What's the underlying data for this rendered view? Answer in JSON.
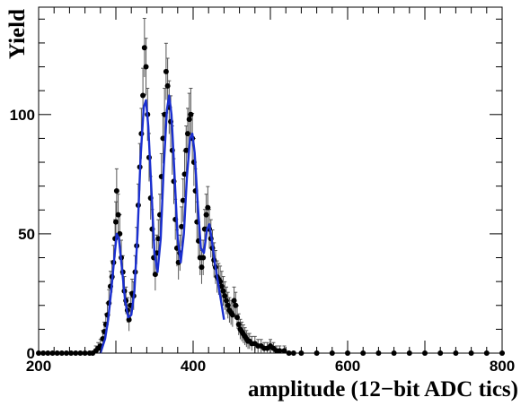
{
  "chart_data": {
    "type": "scatter",
    "title": "",
    "xlabel": "amplitude (12−bit ADC tics)",
    "ylabel": "Yield",
    "xlim": [
      200,
      800
    ],
    "ylim": [
      0,
      145
    ],
    "x_ticks": [
      "200",
      "400",
      "600",
      "800"
    ],
    "y_ticks": [
      "0",
      "50",
      "100"
    ],
    "grid": false,
    "legend": "none",
    "colors": {
      "data": "#000000",
      "fit": "#1a2fd0"
    },
    "series": [
      {
        "kind": "data points with error bars",
        "points": [
          [
            200,
            0
          ],
          [
            206,
            0
          ],
          [
            212,
            0
          ],
          [
            218,
            0
          ],
          [
            224,
            0
          ],
          [
            230,
            0
          ],
          [
            236,
            0
          ],
          [
            242,
            0
          ],
          [
            248,
            0
          ],
          [
            254,
            0
          ],
          [
            260,
            0
          ],
          [
            266,
            0
          ],
          [
            270,
            0
          ],
          [
            274,
            1
          ],
          [
            277,
            2
          ],
          [
            280,
            3
          ],
          [
            283,
            6
          ],
          [
            285,
            9
          ],
          [
            287,
            12
          ],
          [
            289,
            16
          ],
          [
            291,
            21
          ],
          [
            293,
            28
          ],
          [
            295,
            32
          ],
          [
            297,
            38
          ],
          [
            299,
            48
          ],
          [
            300,
            55
          ],
          [
            301,
            68
          ],
          [
            303,
            58
          ],
          [
            305,
            50
          ],
          [
            307,
            40
          ],
          [
            309,
            34
          ],
          [
            311,
            26
          ],
          [
            313,
            22
          ],
          [
            315,
            18
          ],
          [
            317,
            14
          ],
          [
            319,
            20
          ],
          [
            321,
            25
          ],
          [
            323,
            24
          ],
          [
            325,
            34
          ],
          [
            327,
            45
          ],
          [
            329,
            62
          ],
          [
            331,
            78
          ],
          [
            333,
            92
          ],
          [
            335,
            108
          ],
          [
            337,
            128
          ],
          [
            339,
            120
          ],
          [
            341,
            100
          ],
          [
            343,
            82
          ],
          [
            345,
            65
          ],
          [
            347,
            52
          ],
          [
            349,
            40
          ],
          [
            351,
            33
          ],
          [
            353,
            42
          ],
          [
            355,
            48
          ],
          [
            357,
            58
          ],
          [
            359,
            74
          ],
          [
            361,
            90
          ],
          [
            363,
            100
          ],
          [
            365,
            118
          ],
          [
            367,
            112
          ],
          [
            369,
            103
          ],
          [
            371,
            97
          ],
          [
            373,
            85
          ],
          [
            375,
            72
          ],
          [
            377,
            56
          ],
          [
            379,
            44
          ],
          [
            381,
            38
          ],
          [
            383,
            42
          ],
          [
            385,
            53
          ],
          [
            387,
            64
          ],
          [
            389,
            75
          ],
          [
            391,
            85
          ],
          [
            393,
            92
          ],
          [
            395,
            98
          ],
          [
            397,
            100
          ],
          [
            399,
            90
          ],
          [
            401,
            80
          ],
          [
            403,
            68
          ],
          [
            405,
            55
          ],
          [
            407,
            47
          ],
          [
            409,
            40
          ],
          [
            411,
            36
          ],
          [
            413,
            40
          ],
          [
            415,
            52
          ],
          [
            417,
            58
          ],
          [
            419,
            61
          ],
          [
            421,
            52
          ],
          [
            423,
            48
          ],
          [
            425,
            44
          ],
          [
            427,
            39
          ],
          [
            429,
            36
          ],
          [
            431,
            32
          ],
          [
            433,
            31
          ],
          [
            435,
            30
          ],
          [
            437,
            28
          ],
          [
            439,
            26
          ],
          [
            441,
            24
          ],
          [
            443,
            22
          ],
          [
            445,
            20
          ],
          [
            447,
            18
          ],
          [
            449,
            17
          ],
          [
            451,
            16
          ],
          [
            453,
            22
          ],
          [
            455,
            20
          ],
          [
            457,
            15
          ],
          [
            459,
            12
          ],
          [
            461,
            10
          ],
          [
            463,
            9
          ],
          [
            465,
            8
          ],
          [
            467,
            7
          ],
          [
            469,
            6
          ],
          [
            471,
            5
          ],
          [
            473,
            5
          ],
          [
            476,
            4
          ],
          [
            480,
            4
          ],
          [
            484,
            3
          ],
          [
            488,
            3
          ],
          [
            492,
            2
          ],
          [
            496,
            2
          ],
          [
            500,
            3
          ],
          [
            504,
            2
          ],
          [
            508,
            1
          ],
          [
            512,
            1
          ],
          [
            518,
            1
          ],
          [
            524,
            0
          ],
          [
            530,
            0
          ],
          [
            540,
            0
          ],
          [
            560,
            0
          ],
          [
            580,
            0
          ],
          [
            600,
            0
          ],
          [
            620,
            0
          ],
          [
            640,
            0
          ],
          [
            660,
            0
          ],
          [
            680,
            0
          ],
          [
            700,
            0
          ],
          [
            720,
            0
          ],
          [
            740,
            0
          ],
          [
            760,
            0
          ],
          [
            780,
            0
          ],
          [
            800,
            0
          ]
        ]
      },
      {
        "kind": "fit curve",
        "points": [
          [
            280,
            0
          ],
          [
            286,
            6
          ],
          [
            290,
            14
          ],
          [
            294,
            26
          ],
          [
            298,
            40
          ],
          [
            301,
            50
          ],
          [
            304,
            48
          ],
          [
            308,
            35
          ],
          [
            312,
            22
          ],
          [
            316,
            15
          ],
          [
            320,
            16
          ],
          [
            324,
            26
          ],
          [
            328,
            50
          ],
          [
            332,
            82
          ],
          [
            336,
            103
          ],
          [
            339,
            106
          ],
          [
            342,
            95
          ],
          [
            346,
            68
          ],
          [
            350,
            42
          ],
          [
            354,
            34
          ],
          [
            358,
            48
          ],
          [
            362,
            78
          ],
          [
            366,
            102
          ],
          [
            369,
            108
          ],
          [
            372,
            100
          ],
          [
            376,
            74
          ],
          [
            380,
            48
          ],
          [
            384,
            38
          ],
          [
            388,
            50
          ],
          [
            392,
            74
          ],
          [
            396,
            90
          ],
          [
            399,
            92
          ],
          [
            402,
            84
          ],
          [
            406,
            62
          ],
          [
            410,
            44
          ],
          [
            414,
            42
          ],
          [
            418,
            52
          ],
          [
            421,
            54
          ],
          [
            424,
            48
          ],
          [
            428,
            38
          ],
          [
            432,
            30
          ],
          [
            436,
            22
          ],
          [
            440,
            14
          ]
        ]
      }
    ]
  }
}
